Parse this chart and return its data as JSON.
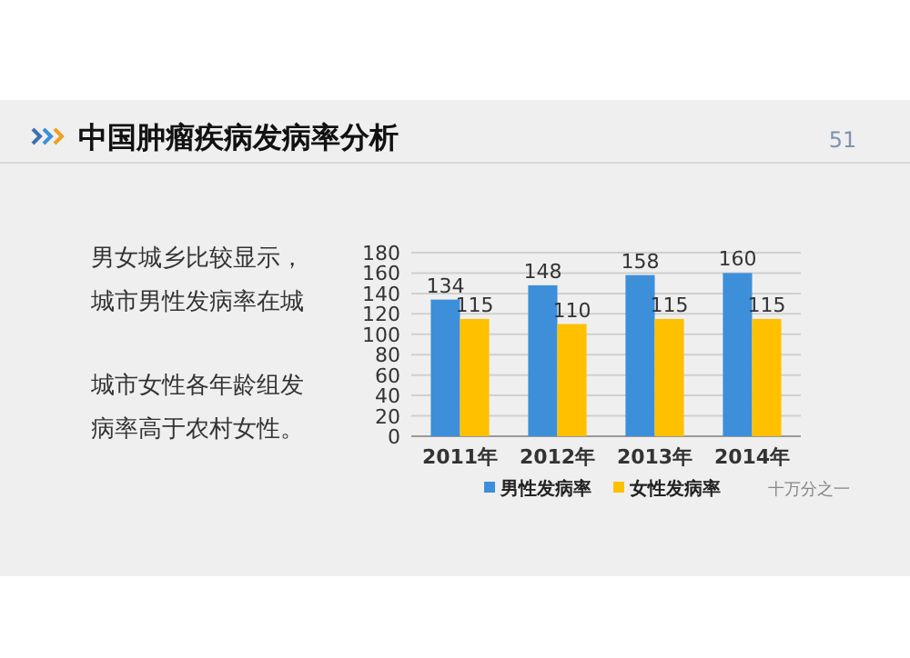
{
  "chart_data": {
    "type": "bar",
    "title": "中国肿瘤疾病发病率分析",
    "categories": [
      "2011年",
      "2012年",
      "2013年",
      "2014年"
    ],
    "series": [
      {
        "name": "男性发病率",
        "color": "#3d8fd9",
        "values": [
          134,
          148,
          158,
          160
        ]
      },
      {
        "name": "女性发病率",
        "color": "#ffc000",
        "values": [
          115,
          110,
          115,
          115
        ]
      }
    ],
    "ylim": [
      0,
      180
    ],
    "yticks": [
      0,
      20,
      40,
      60,
      80,
      100,
      120,
      140,
      160,
      180
    ],
    "grid": "y",
    "legend": "bottom",
    "data_labels": true,
    "annotations": [
      "51",
      "男女城乡比较显示，",
      "城市男性发病率在城",
      "城市女性各年龄组发",
      "病率高于农村女性。",
      "十万分之一"
    ]
  }
}
